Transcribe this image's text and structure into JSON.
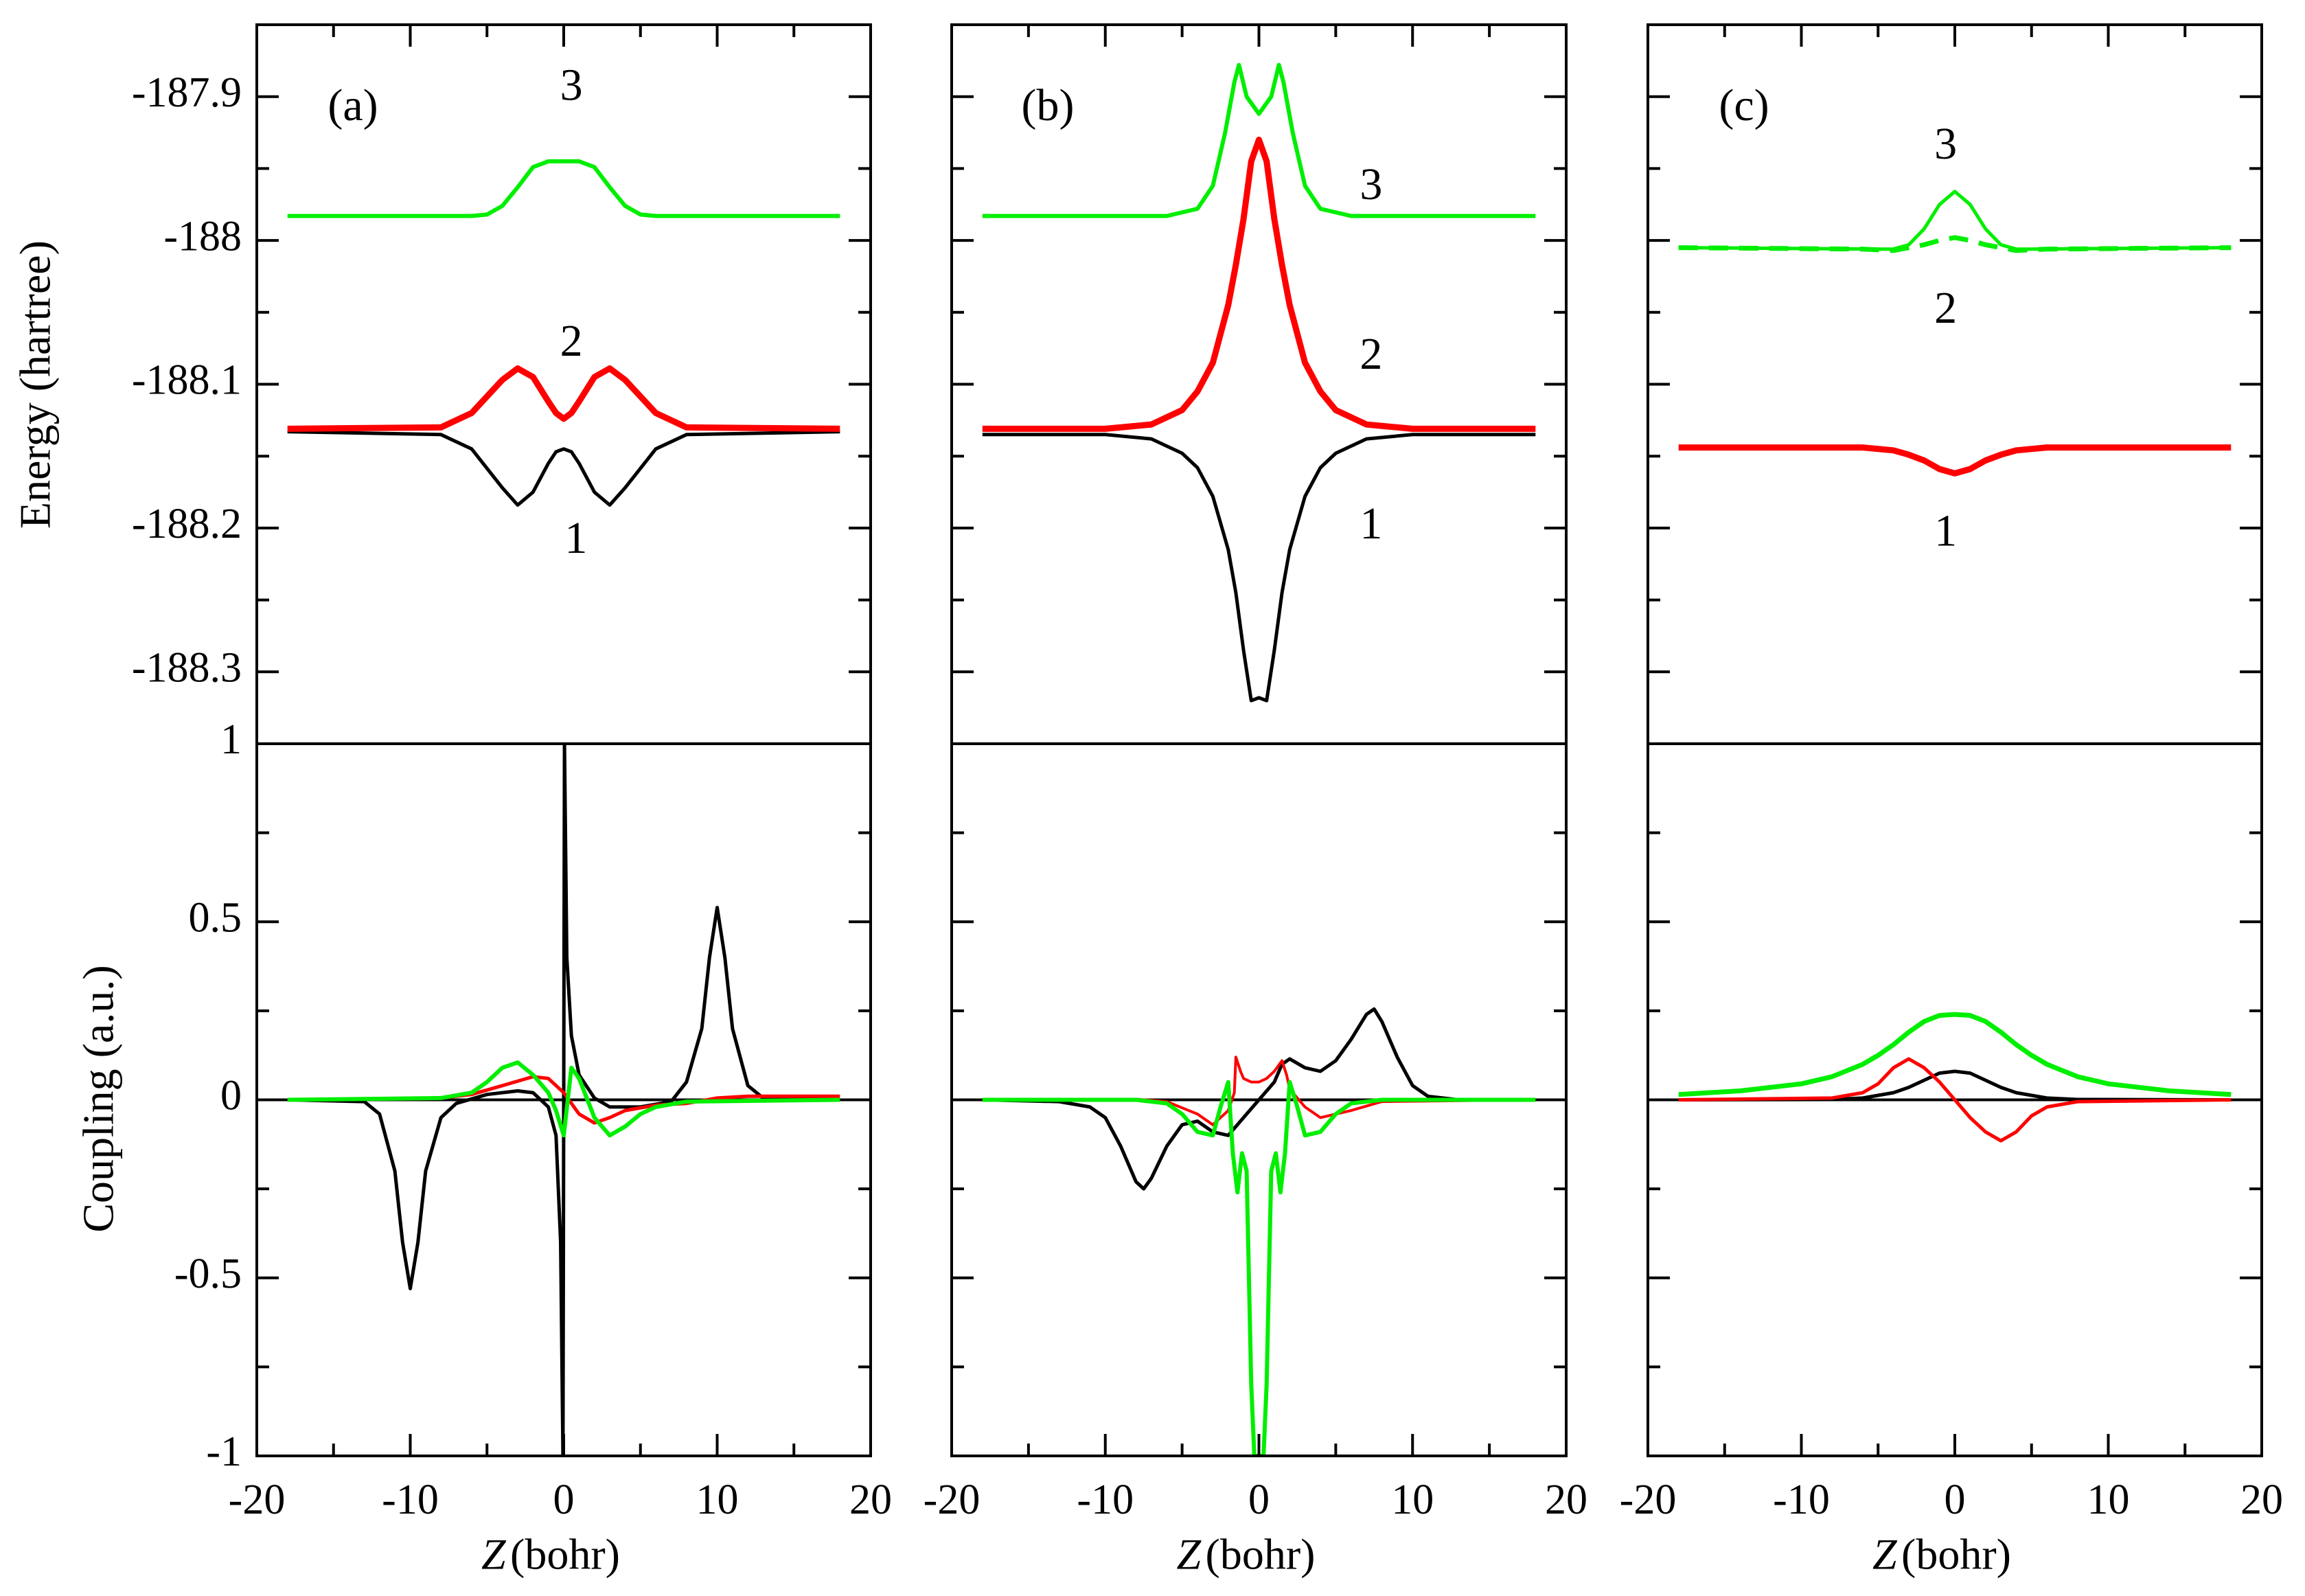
{
  "chart_data": {
    "type": "line",
    "description_free": true,
    "panels": [
      "(a)",
      "(b)",
      "(c)"
    ],
    "x_axis": {
      "label_italic": "Z",
      "label_rest": " (bohr)",
      "xlim": [
        -20,
        20
      ],
      "ticks": [
        -20,
        -10,
        0,
        10,
        20
      ],
      "tick_labels": [
        "-20",
        "-10",
        "0",
        "10",
        "20"
      ]
    },
    "energy_axis": {
      "label": "Energy (hartree)",
      "ylim": [
        -188.35,
        -187.85
      ],
      "ticks": [
        -187.9,
        -188.0,
        -188.1,
        -188.2,
        -188.3
      ],
      "tick_labels": [
        "-187.9",
        "-188",
        "-188.1",
        "-188.2",
        "-188.3"
      ]
    },
    "coupling_axis": {
      "label": "Coupling (a.u.)",
      "ylim": [
        -1,
        1
      ],
      "ticks": [
        1,
        0.5,
        0,
        -0.5,
        -1
      ],
      "tick_labels": [
        "1",
        "0.5",
        "0",
        "-0.5",
        "-1"
      ]
    },
    "colors": {
      "state1": "#000000",
      "state2": "#ff0000",
      "state3": "#00ee00"
    },
    "energy": [
      {
        "panel": "(a)",
        "curve_labels": [
          {
            "text": "3",
            "x": 0.5,
            "y": -187.895
          },
          {
            "text": "2",
            "x": 0.5,
            "y": -188.073
          },
          {
            "text": "1",
            "x": 0.8,
            "y": -188.21
          }
        ],
        "series": [
          {
            "name": "1",
            "color": "#000000",
            "width": 5,
            "x": [
              -18,
              -8,
              -6,
              -4,
              -3,
              -2,
              -1,
              -0.5,
              0,
              0.5,
              1,
              2,
              3,
              4,
              6,
              8,
              18
            ],
            "y": [
              -188.133,
              -188.135,
              -188.145,
              -188.172,
              -188.184,
              -188.175,
              -188.155,
              -188.147,
              -188.145,
              -188.147,
              -188.155,
              -188.175,
              -188.184,
              -188.172,
              -188.145,
              -188.135,
              -188.133
            ]
          },
          {
            "name": "2",
            "color": "#ff0000",
            "width": 9,
            "x": [
              -18,
              -8,
              -6,
              -4,
              -3,
              -2,
              -1,
              -0.5,
              0,
              0.5,
              1,
              2,
              3,
              4,
              6,
              8,
              18
            ],
            "y": [
              -188.131,
              -188.13,
              -188.12,
              -188.097,
              -188.089,
              -188.095,
              -188.112,
              -188.12,
              -188.124,
              -188.12,
              -188.112,
              -188.095,
              -188.089,
              -188.097,
              -188.12,
              -188.13,
              -188.131
            ]
          },
          {
            "name": "3",
            "color": "#00ee00",
            "width": 6,
            "x": [
              -18,
              -6,
              -5,
              -4,
              -3,
              -2,
              -1,
              0,
              1,
              2,
              3,
              4,
              5,
              6,
              18
            ],
            "y": [
              -187.983,
              -187.983,
              -187.982,
              -187.976,
              -187.963,
              -187.949,
              -187.945,
              -187.945,
              -187.945,
              -187.949,
              -187.963,
              -187.976,
              -187.982,
              -187.983,
              -187.983
            ]
          }
        ]
      },
      {
        "panel": "(b)",
        "curve_labels": [
          {
            "text": "3",
            "x": 7.3,
            "y": -187.964
          },
          {
            "text": "2",
            "x": 7.3,
            "y": -188.082
          },
          {
            "text": "1",
            "x": 7.3,
            "y": -188.2
          }
        ],
        "series": [
          {
            "name": "1",
            "color": "#000000",
            "width": 5,
            "x": [
              -18,
              -10,
              -7,
              -5,
              -4,
              -3,
              -2,
              -1.5,
              -1,
              -0.5,
              0,
              0.5,
              1,
              1.5,
              2,
              3,
              4,
              5,
              7,
              10,
              18
            ],
            "y": [
              -188.135,
              -188.135,
              -188.138,
              -188.148,
              -188.158,
              -188.178,
              -188.215,
              -188.245,
              -188.285,
              -188.32,
              -188.318,
              -188.32,
              -188.285,
              -188.245,
              -188.215,
              -188.178,
              -188.158,
              -188.148,
              -188.138,
              -188.135,
              -188.135
            ]
          },
          {
            "name": "2",
            "color": "#ff0000",
            "width": 9,
            "x": [
              -18,
              -10,
              -7,
              -5,
              -4,
              -3,
              -2,
              -1.5,
              -1,
              -0.5,
              0,
              0.5,
              1,
              1.5,
              2,
              3,
              4,
              5,
              7,
              10,
              18
            ],
            "y": [
              -188.131,
              -188.131,
              -188.128,
              -188.118,
              -188.105,
              -188.085,
              -188.045,
              -188.017,
              -187.985,
              -187.945,
              -187.93,
              -187.945,
              -187.985,
              -188.017,
              -188.045,
              -188.085,
              -188.105,
              -188.118,
              -188.128,
              -188.131,
              -188.131
            ]
          },
          {
            "name": "3",
            "color": "#00ee00",
            "width": 6,
            "x": [
              -18,
              -6,
              -4,
              -3,
              -2.2,
              -1.6,
              -1.3,
              -0.8,
              0,
              0.8,
              1.3,
              1.6,
              2.2,
              3,
              4,
              6,
              18
            ],
            "y": [
              -187.983,
              -187.983,
              -187.978,
              -187.962,
              -187.925,
              -187.89,
              -187.878,
              -187.9,
              -187.912,
              -187.9,
              -187.878,
              -187.89,
              -187.925,
              -187.962,
              -187.978,
              -187.983,
              -187.983
            ]
          }
        ]
      },
      {
        "panel": "(c)",
        "curve_labels": [
          {
            "text": "3",
            "x": -0.6,
            "y": -187.936
          },
          {
            "text": "2",
            "x": -0.6,
            "y": -188.05
          },
          {
            "text": "1",
            "x": -0.6,
            "y": -188.205
          }
        ],
        "series": [
          {
            "name": "1 and 2",
            "color": "#ff0000",
            "width": 9,
            "x": [
              -18,
              -6,
              -4,
              -3,
              -2,
              -1,
              0,
              1,
              2,
              3,
              4,
              6,
              18
            ],
            "y": [
              -188.144,
              -188.144,
              -188.146,
              -188.149,
              -188.153,
              -188.159,
              -188.162,
              -188.159,
              -188.153,
              -188.149,
              -188.146,
              -188.144,
              -188.144
            ]
          },
          {
            "name": "3",
            "color": "#00ee00",
            "width": 5,
            "x": [
              -18,
              -5,
              -4,
              -3,
              -2,
              -1,
              0,
              1,
              2,
              3,
              4,
              5,
              18
            ],
            "y": [
              -188.005,
              -188.006,
              -188.006,
              -188.003,
              -187.992,
              -187.975,
              -187.966,
              -187.975,
              -187.992,
              -188.003,
              -188.006,
              -188.006,
              -188.005
            ]
          },
          {
            "name": "3 dashed",
            "color": "#00ee00",
            "width": 7,
            "dashed": true,
            "x": [
              -18,
              -6,
              -4,
              -2,
              -1,
              0,
              1,
              2,
              4,
              6,
              18
            ],
            "y": [
              -188.005,
              -188.006,
              -188.007,
              -188.003,
              -188.0,
              -187.998,
              -188.0,
              -188.003,
              -188.007,
              -188.006,
              -188.005
            ]
          }
        ]
      }
    ],
    "coupling": [
      {
        "panel": "(a)",
        "series": [
          {
            "name": "black",
            "color": "#000000",
            "width": 5,
            "x": [
              -18,
              -13,
              -12,
              -11,
              -10.5,
              -10,
              -9.5,
              -9,
              -8,
              -7,
              -5,
              -3,
              -2,
              -1,
              -0.5,
              -0.2,
              -0.05,
              0.05,
              0.2,
              0.5,
              1,
              2,
              3,
              5,
              7,
              8,
              9,
              9.5,
              10,
              10.5,
              11,
              12,
              13,
              18
            ],
            "y": [
              0,
              -0.005,
              -0.04,
              -0.2,
              -0.4,
              -0.53,
              -0.4,
              -0.2,
              -0.05,
              -0.01,
              0.015,
              0.025,
              0.02,
              -0.02,
              -0.1,
              -0.4,
              -1,
              1,
              0.4,
              0.18,
              0.07,
              0.005,
              -0.02,
              -0.02,
              -0.005,
              0.05,
              0.2,
              0.4,
              0.54,
              0.4,
              0.2,
              0.04,
              0.005,
              0
            ]
          },
          {
            "name": "red",
            "color": "#ff0000",
            "width": 5,
            "x": [
              -18,
              -8,
              -6,
              -4,
              -2,
              -1,
              0,
              1,
              2,
              3,
              4,
              6,
              8,
              10,
              12,
              18
            ],
            "y": [
              0,
              0.005,
              0.015,
              0.04,
              0.065,
              0.06,
              0.02,
              -0.04,
              -0.065,
              -0.05,
              -0.03,
              -0.015,
              -0.01,
              0.005,
              0.01,
              0.01
            ]
          },
          {
            "name": "green",
            "color": "#00ee00",
            "width": 6,
            "x": [
              -18,
              -8,
              -6,
              -5,
              -4,
              -3,
              -2,
              -1,
              -0.5,
              0,
              0.5,
              1,
              2,
              3,
              4,
              5,
              6,
              8,
              18
            ],
            "y": [
              0,
              0.005,
              0.02,
              0.05,
              0.09,
              0.105,
              0.07,
              0.02,
              -0.03,
              -0.1,
              0.09,
              0.06,
              -0.05,
              -0.1,
              -0.075,
              -0.04,
              -0.02,
              -0.005,
              0
            ]
          }
        ]
      },
      {
        "panel": "(b)",
        "series": [
          {
            "name": "black",
            "color": "#000000",
            "width": 5,
            "x": [
              -18,
              -13,
              -11,
              -10,
              -9,
              -8,
              -7.5,
              -7,
              -6,
              -5,
              -4,
              -3,
              -2,
              -1,
              0,
              1,
              1.5,
              2,
              3,
              4,
              5,
              6,
              7,
              7.5,
              8,
              9,
              10,
              11,
              13,
              18
            ],
            "y": [
              0,
              -0.005,
              -0.02,
              -0.05,
              -0.13,
              -0.23,
              -0.25,
              -0.22,
              -0.13,
              -0.07,
              -0.06,
              -0.09,
              -0.1,
              -0.05,
              0,
              0.05,
              0.1,
              0.115,
              0.09,
              0.08,
              0.11,
              0.17,
              0.24,
              0.255,
              0.22,
              0.12,
              0.04,
              0.01,
              0,
              0
            ]
          },
          {
            "name": "red",
            "color": "#ff0000",
            "width": 4,
            "x": [
              -18,
              -8,
              -6,
              -4,
              -3,
              -2,
              -1.6,
              -1.5,
              -1.2,
              -1,
              -0.5,
              0,
              0.5,
              1,
              1.5,
              1.8,
              2,
              3,
              4,
              6,
              8,
              18
            ],
            "y": [
              0,
              0.002,
              -0.005,
              -0.04,
              -0.07,
              -0.03,
              0.02,
              0.12,
              0.08,
              0.06,
              0.05,
              0.05,
              0.06,
              0.08,
              0.11,
              0.07,
              0.03,
              -0.02,
              -0.05,
              -0.03,
              -0.005,
              0
            ]
          },
          {
            "name": "green",
            "color": "#00ee00",
            "width": 6,
            "x": [
              -18,
              -8,
              -6,
              -5,
              -4,
              -3,
              -2.5,
              -2,
              -1.7,
              -1.4,
              -1.1,
              -0.8,
              -0.5,
              -0.3,
              -0.1,
              0.1,
              0.3,
              0.5,
              0.8,
              1.1,
              1.4,
              1.7,
              2,
              2.5,
              3,
              4,
              5,
              6,
              8,
              18
            ],
            "y": [
              0,
              0,
              -0.01,
              -0.04,
              -0.09,
              -0.1,
              -0.02,
              0.05,
              -0.15,
              -0.26,
              -0.15,
              -0.2,
              -0.8,
              -1,
              -1,
              -1,
              -1,
              -0.8,
              -0.2,
              -0.15,
              -0.26,
              -0.15,
              0.05,
              -0.02,
              -0.1,
              -0.09,
              -0.04,
              -0.01,
              0,
              0
            ]
          }
        ]
      },
      {
        "panel": "(c)",
        "series": [
          {
            "name": "black",
            "color": "#000000",
            "width": 5,
            "x": [
              -18,
              -8,
              -6,
              -4,
              -3,
              -2,
              -1,
              0,
              1,
              2,
              3,
              4,
              6,
              8,
              18
            ],
            "y": [
              0,
              0.001,
              0.005,
              0.02,
              0.035,
              0.055,
              0.075,
              0.08,
              0.075,
              0.055,
              0.035,
              0.02,
              0.005,
              0.001,
              0
            ]
          },
          {
            "name": "red",
            "color": "#ff0000",
            "width": 5,
            "x": [
              -18,
              -8,
              -6,
              -5,
              -4,
              -3,
              -2,
              -1,
              0,
              1,
              2,
              3,
              4,
              5,
              6,
              8,
              18
            ],
            "y": [
              0,
              0.005,
              0.02,
              0.045,
              0.09,
              0.115,
              0.09,
              0.05,
              0,
              -0.05,
              -0.09,
              -0.115,
              -0.09,
              -0.045,
              -0.02,
              -0.005,
              0
            ]
          },
          {
            "name": "green",
            "color": "#00ee00",
            "width": 7,
            "x": [
              -18,
              -14,
              -10,
              -8,
              -6,
              -5,
              -4,
              -3,
              -2,
              -1,
              0,
              1,
              2,
              3,
              4,
              5,
              6,
              8,
              10,
              14,
              18
            ],
            "y": [
              0.015,
              0.025,
              0.045,
              0.065,
              0.1,
              0.125,
              0.155,
              0.19,
              0.22,
              0.237,
              0.24,
              0.237,
              0.22,
              0.19,
              0.155,
              0.125,
              0.1,
              0.065,
              0.045,
              0.025,
              0.015
            ]
          }
        ]
      }
    ]
  }
}
